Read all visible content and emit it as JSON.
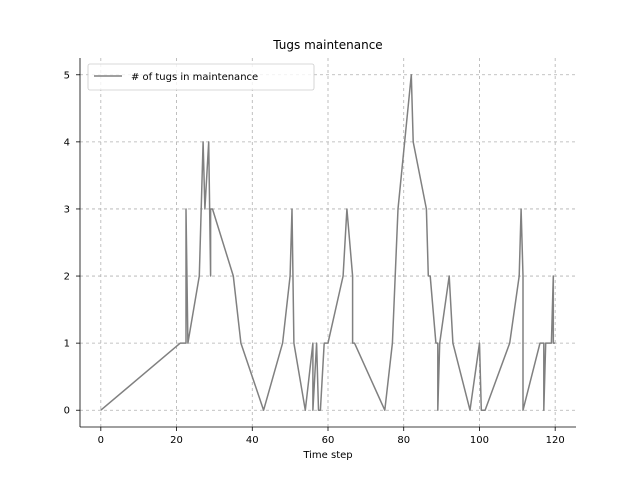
{
  "chart_data": {
    "type": "line",
    "title": "Tugs maintenance",
    "xlabel": "Time step",
    "ylabel": "",
    "xlim": [
      -5.5,
      125.5
    ],
    "ylim": [
      -0.25,
      5.25
    ],
    "xticks": [
      0,
      20,
      40,
      60,
      80,
      100,
      120
    ],
    "yticks": [
      0,
      1,
      2,
      3,
      4,
      5
    ],
    "grid": true,
    "legend_position": "top-left",
    "series": [
      {
        "name": "# of tugs in maintenance",
        "color": "#808080",
        "x": [
          0,
          21,
          22.5,
          22.5,
          23,
          26,
          27,
          27.5,
          28.5,
          29,
          29,
          29.5,
          35,
          37,
          43,
          48,
          50,
          50.5,
          51,
          54,
          56,
          56,
          57,
          57.5,
          58,
          59,
          60,
          64,
          65,
          66.5,
          66.5,
          67,
          75,
          77,
          78.5,
          82,
          82.5,
          86,
          86.5,
          87,
          88.5,
          89,
          89,
          89.5,
          92,
          93,
          97.5,
          100,
          100.5,
          101.5,
          108,
          110.5,
          111,
          111.5,
          111.5,
          116,
          117,
          117,
          117.5,
          119,
          119.5,
          119.5,
          120
        ],
        "y": [
          0,
          1,
          1,
          3,
          1,
          2,
          4,
          3,
          4,
          2,
          3,
          3,
          2,
          1,
          0,
          1,
          2,
          3,
          1,
          0,
          1,
          0,
          1,
          0,
          0,
          1,
          1,
          2,
          3,
          2,
          1,
          1,
          0,
          1,
          3,
          5,
          4,
          3,
          2,
          2,
          1,
          1,
          0,
          1,
          2,
          1,
          0,
          1,
          0,
          0,
          1,
          2,
          3,
          2,
          0,
          1,
          1,
          0,
          1,
          1,
          2,
          1,
          1
        ]
      }
    ]
  }
}
